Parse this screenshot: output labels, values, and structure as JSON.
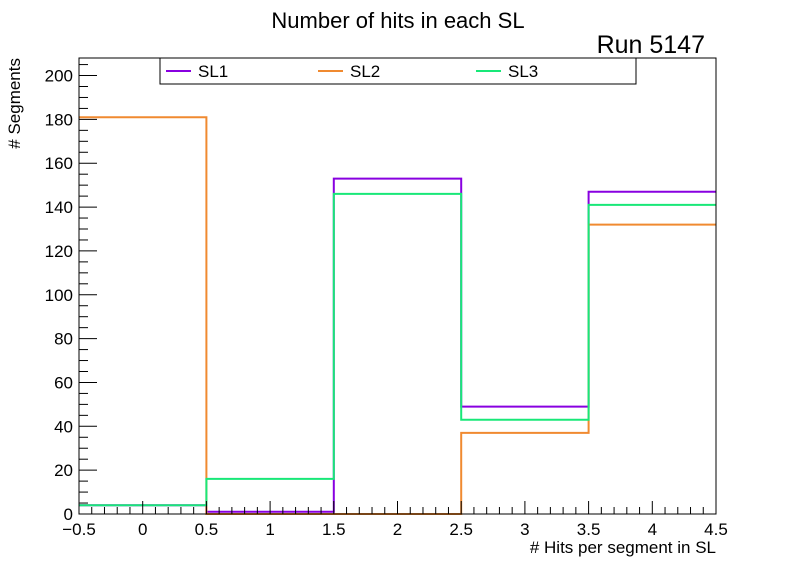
{
  "chart_data": {
    "type": "step-histogram",
    "title": "Number of hits in each SL",
    "run_label": "Run 5147",
    "xlabel": "# Hits per segment in SL",
    "ylabel": "# Segments",
    "xlim": [
      -0.5,
      4.5
    ],
    "ylim": [
      0,
      208
    ],
    "x_ticks": [
      -0.5,
      0,
      0.5,
      1,
      1.5,
      2,
      2.5,
      3,
      3.5,
      4,
      4.5
    ],
    "x_tick_labels": [
      "−0.5",
      "0",
      "0.5",
      "1",
      "1.5",
      "2",
      "2.5",
      "3",
      "3.5",
      "4",
      "4.5"
    ],
    "y_ticks": [
      0,
      20,
      40,
      60,
      80,
      100,
      120,
      140,
      160,
      180,
      200
    ],
    "y_tick_labels": [
      "0",
      "20",
      "40",
      "60",
      "80",
      "100",
      "120",
      "140",
      "160",
      "180",
      "200"
    ],
    "bin_edges": [
      -0.5,
      0.5,
      1.5,
      2.5,
      3.5,
      4.5
    ],
    "series": [
      {
        "name": "SL1",
        "color": "#8800e0",
        "values": [
          4,
          1,
          153,
          49,
          147
        ]
      },
      {
        "name": "SL2",
        "color": "#f08a30",
        "values": [
          181,
          0,
          0,
          37,
          132
        ]
      },
      {
        "name": "SL3",
        "color": "#18e878",
        "values": [
          4,
          16,
          146,
          43,
          141
        ]
      }
    ],
    "legend": {
      "position": "top",
      "entries": [
        "SL1",
        "SL2",
        "SL3"
      ]
    },
    "grid": false
  }
}
